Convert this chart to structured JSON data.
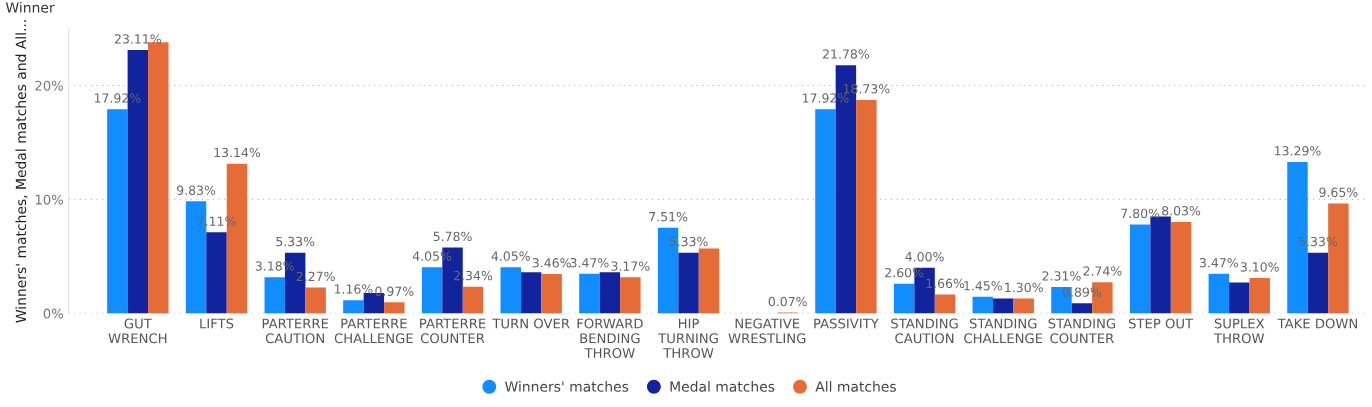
{
  "chart_data": {
    "type": "bar",
    "title": "Winner",
    "ylabel": "Winners' matches, Medal matches and All...",
    "categories": [
      "GUT\nWRENCH",
      "LIFTS",
      "PARTERRE\nCAUTION",
      "PARTERRE\nCHALLENGE",
      "PARTERRE\nCOUNTER",
      "TURN OVER",
      "FORWARD\nBENDING\nTHROW",
      "HIP\nTURNING\nTHROW",
      "NEGATIVE\nWRESTLING",
      "PASSIVITY",
      "STANDING\nCAUTION",
      "STANDING\nCHALLENGE",
      "STANDING\nCOUNTER",
      "STEP OUT",
      "SUPLEX\nTHROW",
      "TAKE DOWN"
    ],
    "series": [
      {
        "name": "Winners' matches",
        "color": "#118dff",
        "values": [
          17.92,
          9.83,
          3.18,
          1.16,
          4.05,
          4.05,
          3.47,
          7.51,
          null,
          17.92,
          2.6,
          1.45,
          2.31,
          7.8,
          3.47,
          13.29
        ],
        "value_labels": [
          "17.92%",
          "9.83%",
          "3.18%",
          "1.16%",
          "4.05%",
          "4.05%",
          "3.47%",
          "7.51%",
          null,
          "17.92%",
          "2.60%",
          "1.45%",
          "2.31%",
          "7.80%",
          "3.47%",
          "13.29%"
        ]
      },
      {
        "name": "Medal matches",
        "color": "#12239e",
        "values": [
          23.11,
          7.11,
          5.33,
          1.8,
          5.78,
          3.6,
          3.6,
          5.33,
          null,
          21.78,
          4.0,
          1.3,
          0.89,
          8.5,
          2.7,
          5.33
        ],
        "value_labels": [
          "23.11%",
          "7.11%",
          "5.33%",
          null,
          "5.78%",
          null,
          null,
          "5.33%",
          null,
          "21.78%",
          "4.00%",
          null,
          "0.89%",
          null,
          null,
          "5.33%"
        ]
      },
      {
        "name": "All matches",
        "color": "#e66c37",
        "values": [
          23.8,
          13.14,
          2.27,
          0.97,
          2.34,
          3.46,
          3.17,
          5.7,
          0.07,
          18.73,
          1.66,
          1.3,
          2.74,
          8.03,
          3.1,
          9.65
        ],
        "value_labels": [
          null,
          "13.14%",
          "2.27%",
          "0.97%",
          "2.34%",
          "3.46%",
          "3.17%",
          null,
          "0.07%",
          "18.73%",
          "1.66%",
          "1.30%",
          "2.74%",
          "8.03%",
          "3.10%",
          "9.65%"
        ]
      }
    ],
    "ylim": [
      0,
      25
    ],
    "yticks": [
      {
        "value": 0,
        "label": "0%"
      },
      {
        "value": 10,
        "label": "10%"
      },
      {
        "value": 20,
        "label": "20%"
      }
    ],
    "grid": "y",
    "legend": "bottom",
    "marker": "circle"
  }
}
